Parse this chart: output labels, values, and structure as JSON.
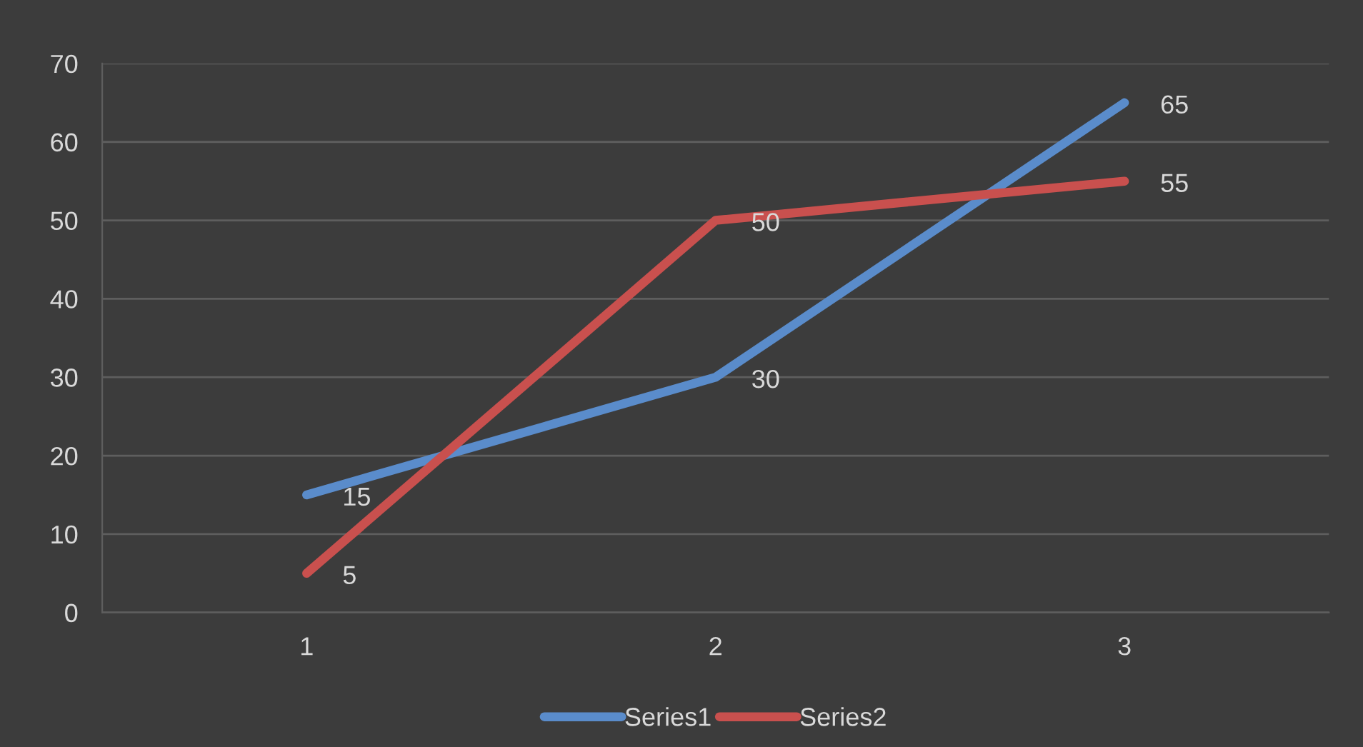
{
  "chart_data": {
    "type": "line",
    "categories": [
      "1",
      "2",
      "3"
    ],
    "series": [
      {
        "name": "Series1",
        "color": "#5a8ccb",
        "values": [
          15,
          30,
          65
        ]
      },
      {
        "name": "Series2",
        "color": "#c9504e",
        "values": [
          5,
          50,
          55
        ]
      }
    ],
    "ylim": [
      0,
      70
    ],
    "yticks": [
      0,
      10,
      20,
      30,
      40,
      50,
      60,
      70
    ],
    "grid": "y",
    "legend": "bottom",
    "data_labels": true,
    "marker": "none",
    "line_style": "solid"
  }
}
